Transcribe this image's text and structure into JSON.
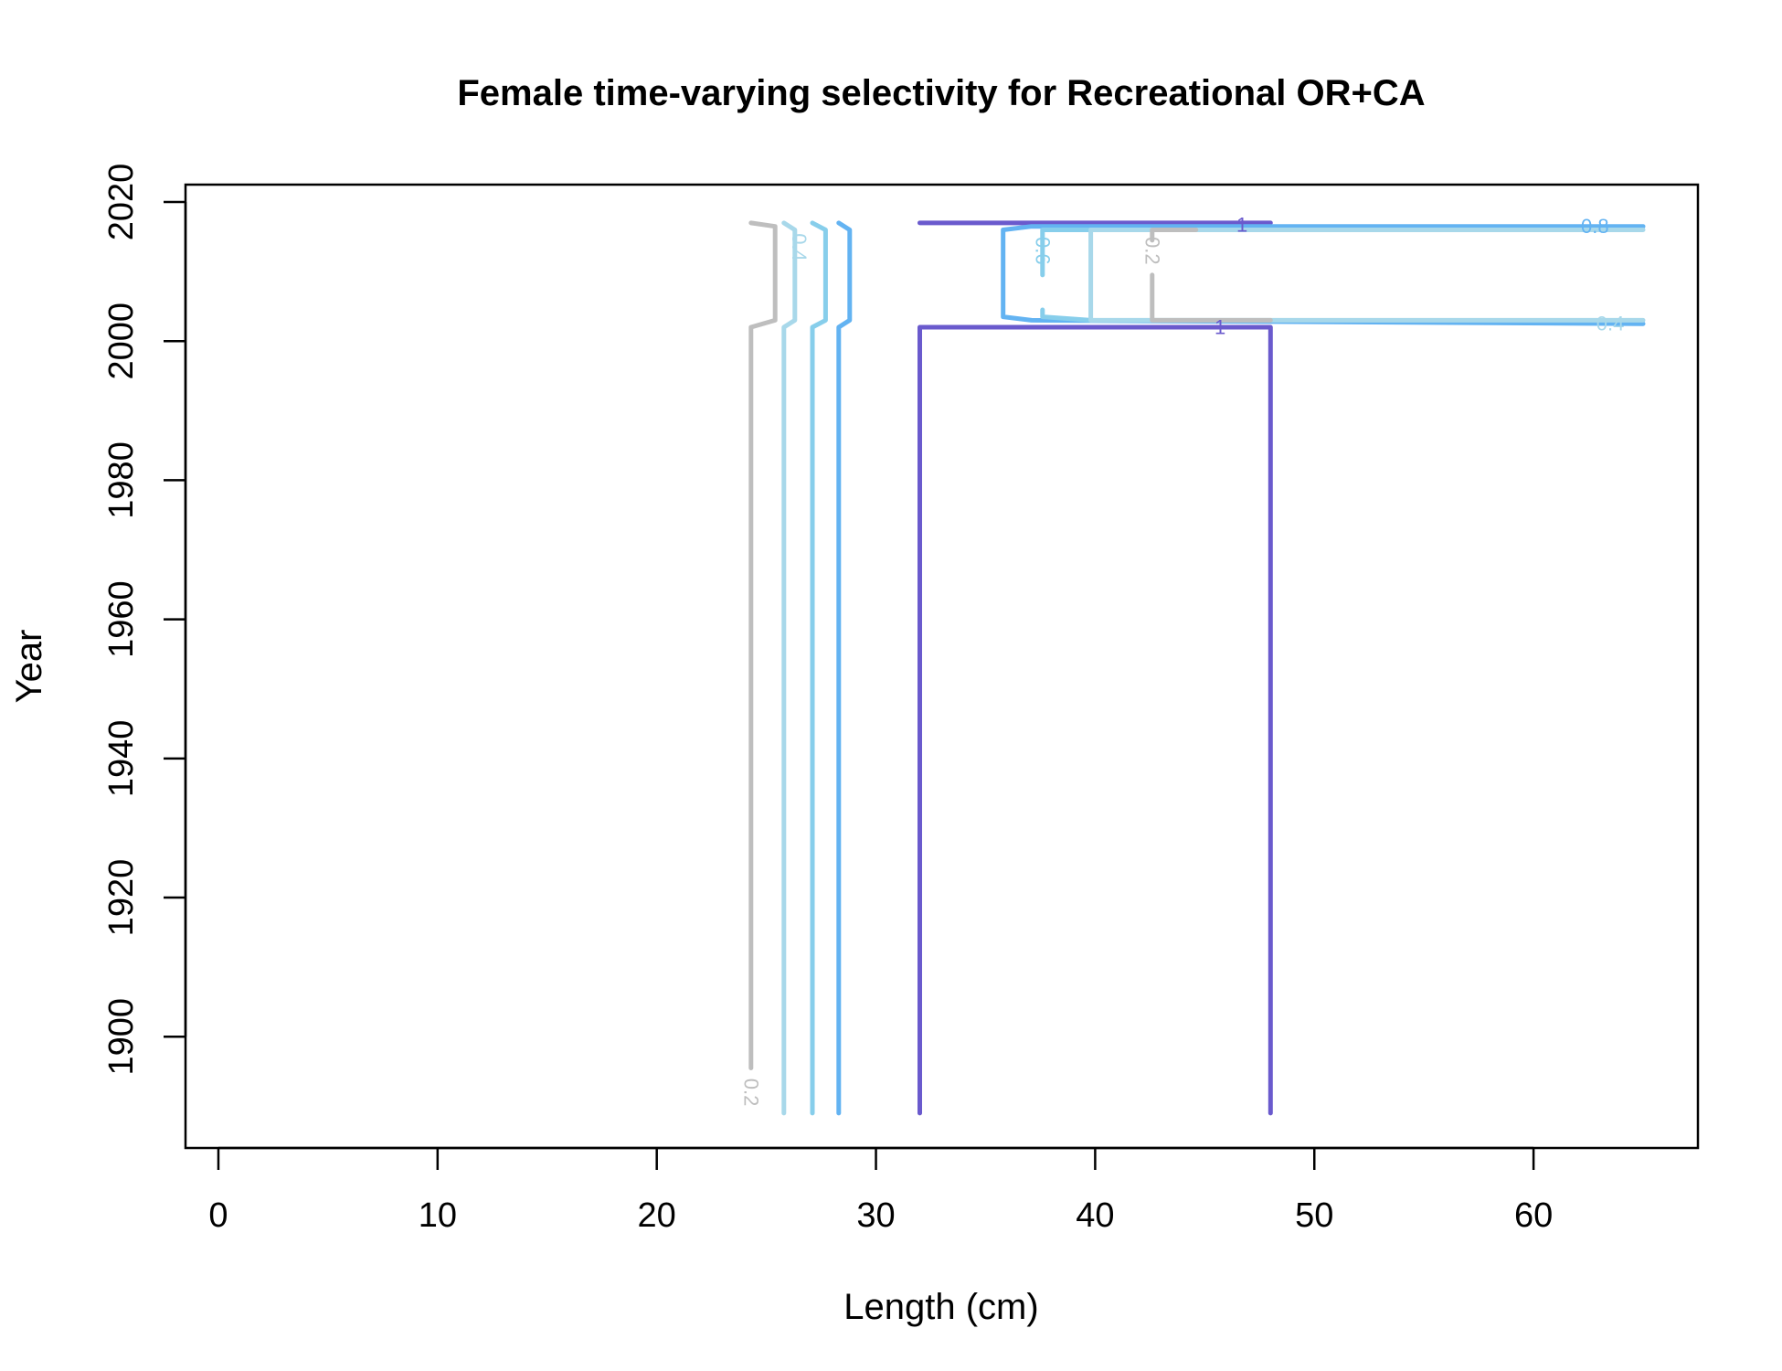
{
  "chart_data": {
    "type": "contour",
    "title": "Female time-varying selectivity for Recreational OR+CA",
    "xlabel": "Length (cm)",
    "ylabel": "Year",
    "xlim": [
      -1.5,
      67.5
    ],
    "ylim": [
      1884,
      2022.5
    ],
    "xticks": [
      0,
      10,
      20,
      30,
      40,
      50,
      60
    ],
    "yticks": [
      1900,
      1920,
      1940,
      1960,
      1980,
      2000,
      2020
    ],
    "colors": {
      "0.2": "#bebebe",
      "0.4": "#a8d8ea",
      "0.6": "#87ceeb",
      "0.8": "#63b3f2",
      "1": "#6a5acd"
    },
    "series": [
      {
        "level": "0.2",
        "points": [
          [
            24.3,
            1895.5
          ],
          [
            24.3,
            2002
          ],
          [
            25.4,
            2003
          ],
          [
            25.4,
            2016.5
          ],
          [
            24.3,
            2017
          ]
        ]
      },
      {
        "level": "0.4",
        "points": [
          [
            25.8,
            1889
          ],
          [
            25.8,
            2002
          ],
          [
            26.3,
            2003
          ],
          [
            26.3,
            2016
          ],
          [
            25.8,
            2017
          ]
        ]
      },
      {
        "level": "0.6",
        "points": [
          [
            27.1,
            1889
          ],
          [
            27.1,
            2002
          ],
          [
            27.7,
            2003
          ],
          [
            27.7,
            2016
          ],
          [
            27.1,
            2017
          ]
        ]
      },
      {
        "level": "0.8",
        "points": [
          [
            28.3,
            1889
          ],
          [
            28.3,
            2002
          ],
          [
            28.8,
            2003
          ],
          [
            28.8,
            2016
          ],
          [
            28.3,
            2017
          ]
        ]
      },
      {
        "level": "1",
        "points": [
          [
            32,
            1889
          ],
          [
            32,
            2002
          ],
          [
            48,
            2002
          ],
          [
            48,
            1889
          ]
        ]
      },
      {
        "level": "1",
        "points": [
          [
            32,
            2017
          ],
          [
            48,
            2017
          ]
        ]
      },
      {
        "level": "0.8",
        "points": [
          [
            65,
            2016.5
          ],
          [
            37.1,
            2016.5
          ],
          [
            35.8,
            2016
          ],
          [
            35.8,
            2003.5
          ],
          [
            37.1,
            2003
          ],
          [
            65,
            2002.5
          ]
        ]
      },
      {
        "level": "0.6",
        "points": [
          [
            39.8,
            2016
          ],
          [
            37.6,
            2016
          ],
          [
            37.6,
            2009.5
          ]
        ]
      },
      {
        "level": "0.6",
        "points": [
          [
            37.6,
            2004.5
          ],
          [
            37.6,
            2003.5
          ],
          [
            39.8,
            2003
          ]
        ]
      },
      {
        "level": "0.4",
        "points": [
          [
            65,
            2016
          ],
          [
            39.8,
            2016
          ],
          [
            39.8,
            2003
          ],
          [
            65,
            2003
          ]
        ]
      },
      {
        "level": "0.2",
        "points": [
          [
            44.6,
            2016
          ],
          [
            42.6,
            2016
          ],
          [
            42.6,
            2014.5
          ]
        ]
      },
      {
        "level": "0.2",
        "points": [
          [
            42.6,
            2009.5
          ],
          [
            42.6,
            2003
          ],
          [
            48,
            2003
          ]
        ]
      }
    ],
    "labels": [
      {
        "text": "0.2",
        "level": "0.2",
        "x": 24.3,
        "y": 1892,
        "rotate": 90
      },
      {
        "text": "0.4",
        "level": "0.4",
        "x": 26.5,
        "y": 2013.5,
        "rotate": 90
      },
      {
        "text": "0.6",
        "level": "0.6",
        "x": 37.6,
        "y": 2013,
        "rotate": 90
      },
      {
        "text": "0.2",
        "level": "0.2",
        "x": 42.6,
        "y": 2013,
        "rotate": 90
      },
      {
        "text": "1",
        "level": "1",
        "x": 46.7,
        "y": 2016.7,
        "rotate": 0
      },
      {
        "text": "1",
        "level": "1",
        "x": 45.7,
        "y": 2002,
        "rotate": 0
      },
      {
        "text": "0.8",
        "level": "0.8",
        "x": 62.8,
        "y": 2016.5,
        "rotate": 0
      },
      {
        "text": "0.4",
        "level": "0.4",
        "x": 63.5,
        "y": 2002.5,
        "rotate": 0
      }
    ]
  }
}
